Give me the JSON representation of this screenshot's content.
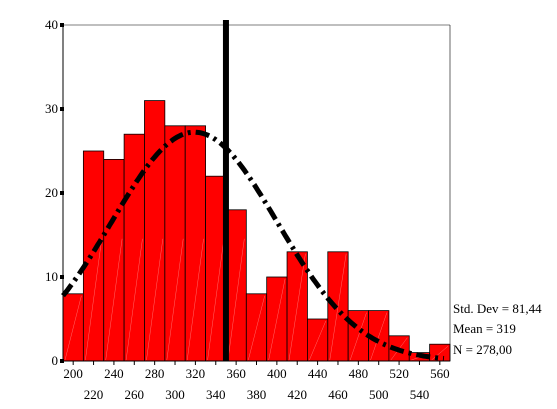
{
  "chart_data": {
    "type": "bar",
    "bins": [
      {
        "start": 190,
        "end": 210,
        "count": 8
      },
      {
        "start": 210,
        "end": 230,
        "count": 25
      },
      {
        "start": 230,
        "end": 250,
        "count": 24
      },
      {
        "start": 250,
        "end": 270,
        "count": 27
      },
      {
        "start": 270,
        "end": 290,
        "count": 31
      },
      {
        "start": 290,
        "end": 310,
        "count": 28
      },
      {
        "start": 310,
        "end": 330,
        "count": 28
      },
      {
        "start": 330,
        "end": 350,
        "count": 22
      },
      {
        "start": 350,
        "end": 370,
        "count": 18
      },
      {
        "start": 370,
        "end": 390,
        "count": 8
      },
      {
        "start": 390,
        "end": 410,
        "count": 10
      },
      {
        "start": 410,
        "end": 430,
        "count": 13
      },
      {
        "start": 430,
        "end": 450,
        "count": 5
      },
      {
        "start": 450,
        "end": 470,
        "count": 13
      },
      {
        "start": 470,
        "end": 490,
        "count": 6
      },
      {
        "start": 490,
        "end": 510,
        "count": 6
      },
      {
        "start": 510,
        "end": 530,
        "count": 3
      },
      {
        "start": 530,
        "end": 550,
        "count": 1
      },
      {
        "start": 550,
        "end": 570,
        "count": 2
      }
    ],
    "xlim": [
      190,
      570
    ],
    "ylim": [
      0,
      40
    ],
    "y_ticks": [
      "0",
      "10",
      "20",
      "30",
      "40"
    ],
    "x_ticks_top_row": [
      "200",
      "240",
      "280",
      "320",
      "360",
      "400",
      "440",
      "480",
      "520",
      "560"
    ],
    "x_ticks_bottom_row": [
      "220",
      "260",
      "300",
      "340",
      "380",
      "420",
      "460",
      "500",
      "540"
    ],
    "normal_curve": {
      "mean": 319,
      "std_dev": 81.44,
      "n": 278,
      "bin_width": 20
    },
    "reference_line_x": 350,
    "bar_color": "#ff0000",
    "stats_text": {
      "std_dev": "Std. Dev = 81,44",
      "mean": "Mean = 319",
      "n": "N = 278,00"
    }
  }
}
